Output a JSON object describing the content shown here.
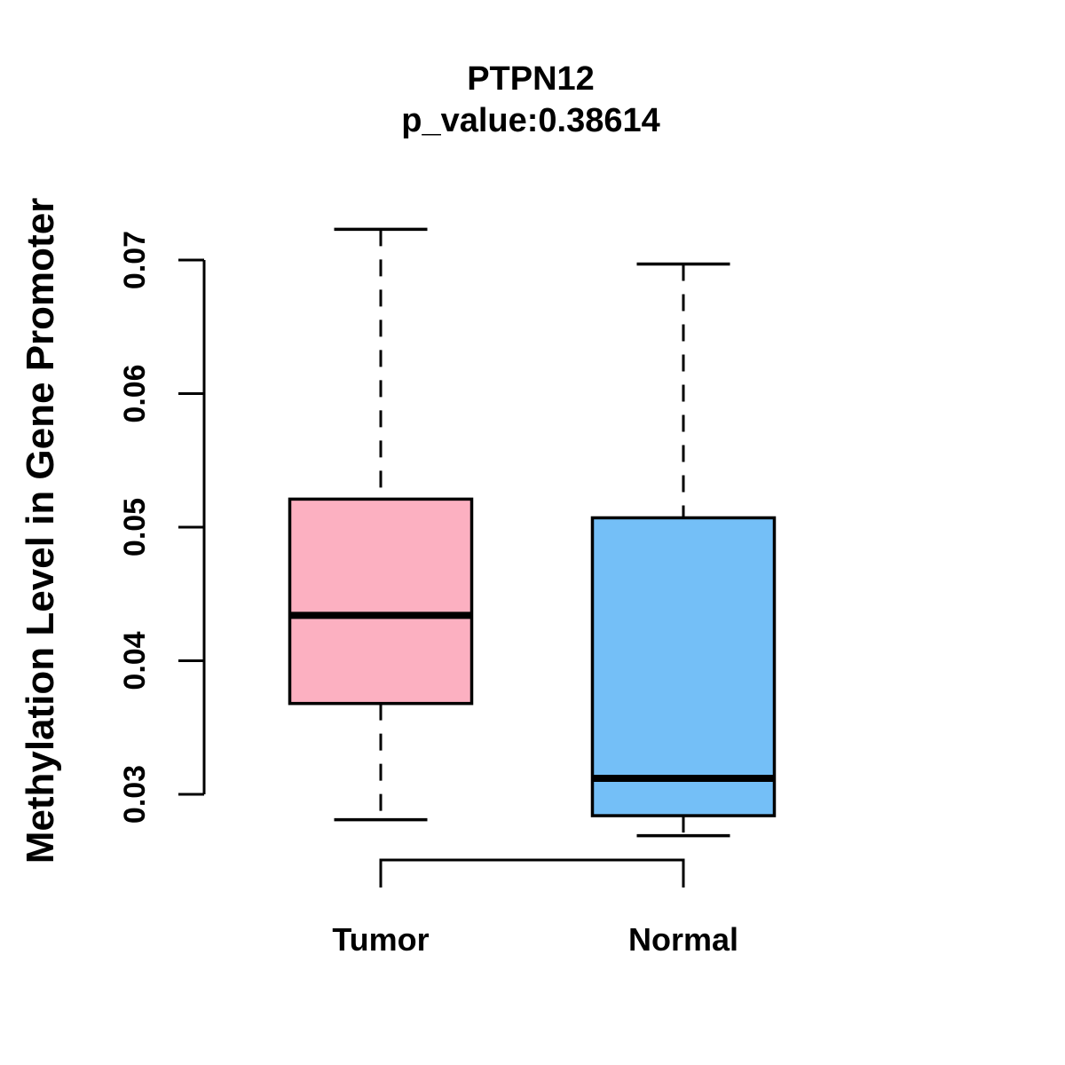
{
  "chart_data": {
    "type": "boxplot",
    "title": "PTPN12",
    "subtitle": "p_value:0.38614",
    "p_value": 0.38614,
    "ylabel": "Methylation Level in Gene Promoter",
    "ylim": [
      0.03,
      0.07
    ],
    "yticks": [
      0.07,
      0.06,
      0.05,
      0.04,
      0.03
    ],
    "ytick_labels": [
      "0.07",
      "0.06",
      "0.05",
      "0.04",
      "0.03"
    ],
    "grid": false,
    "legend": "none",
    "categories": [
      "Tumor",
      "Normal"
    ],
    "groups": [
      {
        "label": "Tumor",
        "fill_color": "#FCB0C1",
        "stats": {
          "whisker_low": 0.0281,
          "q1": 0.0368,
          "median": 0.0434,
          "q3": 0.0521,
          "whisker_high": 0.0723
        }
      },
      {
        "label": "Normal",
        "fill_color": "#74BFF7",
        "stats": {
          "whisker_low": 0.0269,
          "q1": 0.0284,
          "median": 0.0312,
          "q3": 0.0507,
          "whisker_high": 0.0697
        }
      }
    ],
    "box_border_color": "#000000",
    "comparison_bracket": {
      "from": "Tumor",
      "to": "Normal"
    }
  }
}
